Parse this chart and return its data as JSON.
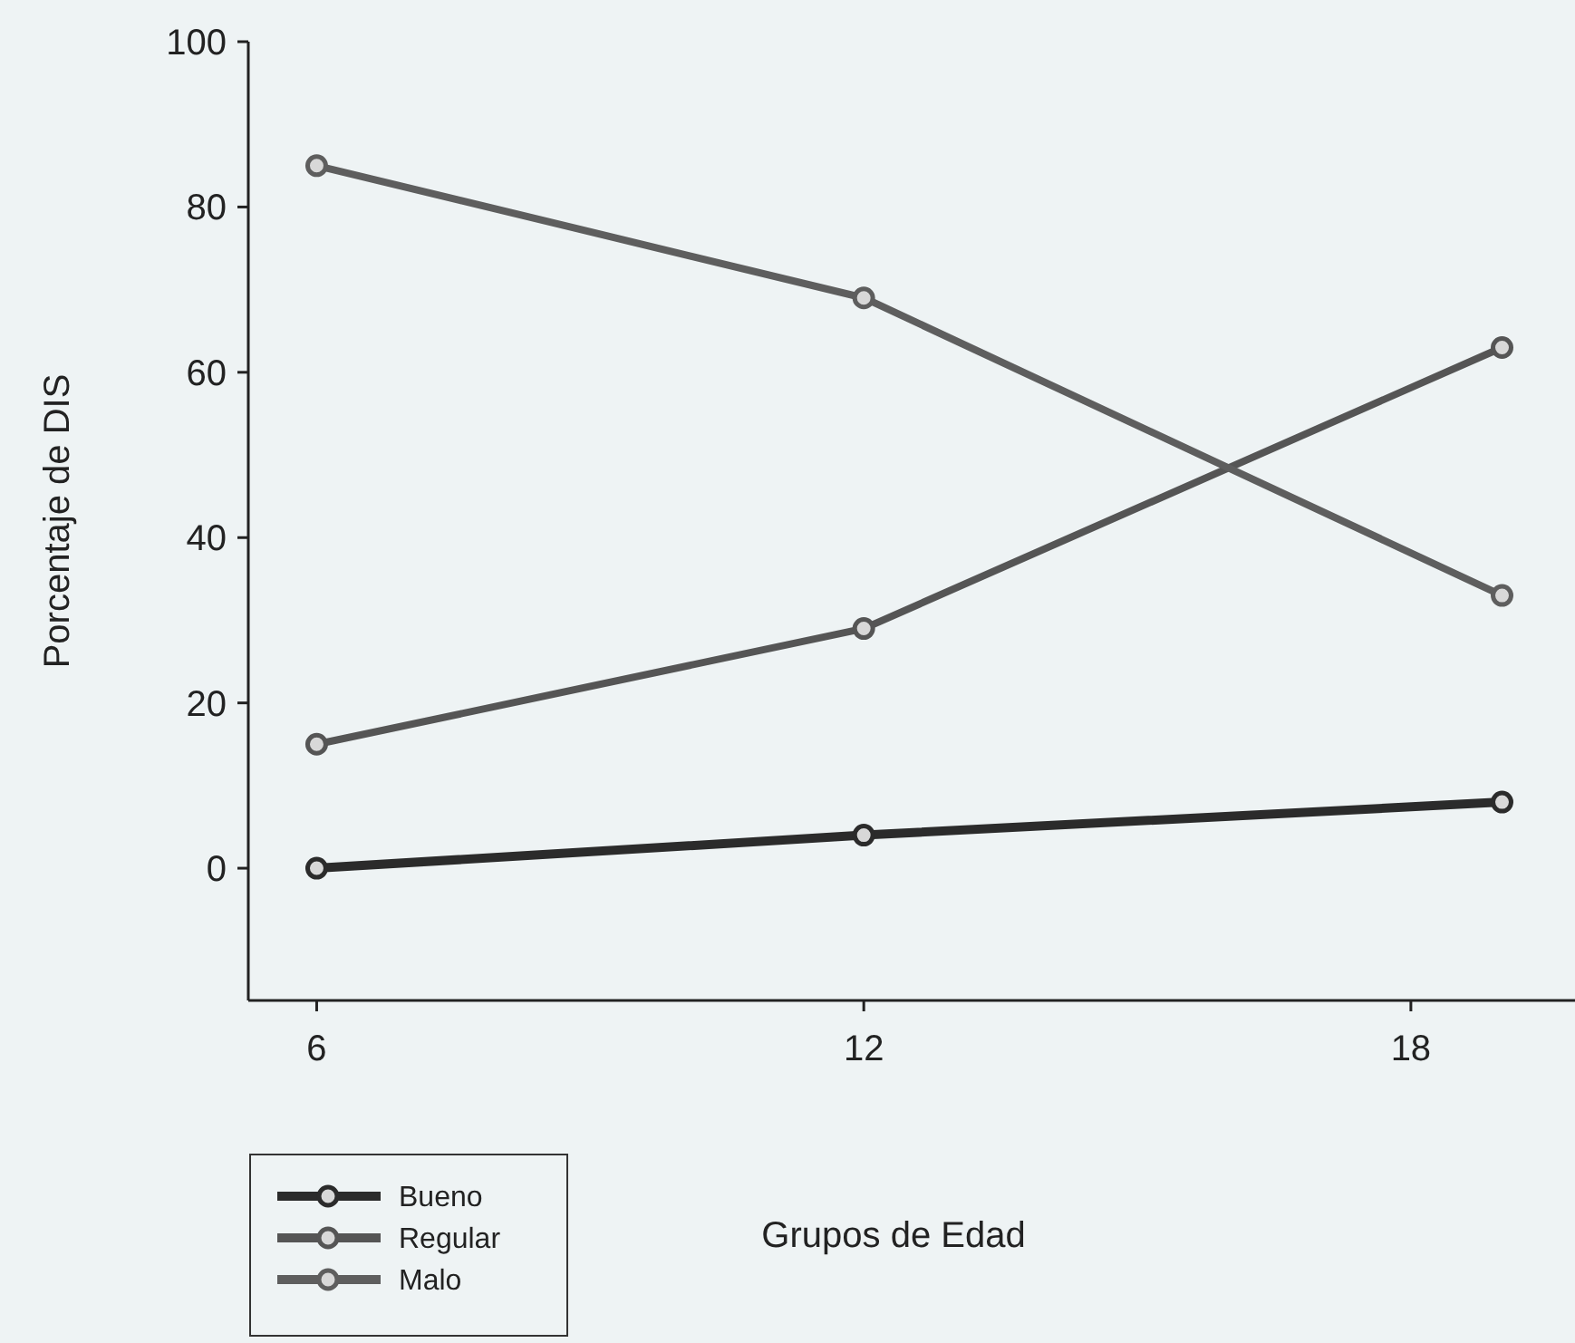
{
  "chart_data": {
    "type": "line",
    "xlabel": "Grupos de Edad",
    "ylabel": "Porcentaje de DIS",
    "xlim": [
      5.25,
      19.8
    ],
    "xticks": [
      6,
      12,
      18
    ],
    "ylim": [
      -16,
      100
    ],
    "yticks": [
      0,
      20,
      40,
      60,
      80,
      100
    ],
    "x": [
      6,
      12,
      19
    ],
    "marker": "circle",
    "line_style": "solid",
    "grid": false,
    "legend": "bottom left",
    "series": [
      {
        "name": "Bueno",
        "color": "#2b2b2b",
        "values": [
          0,
          4,
          8
        ]
      },
      {
        "name": "Regular",
        "color": "#555555",
        "values": [
          15,
          29,
          63
        ]
      },
      {
        "name": "Malo",
        "color": "#5e5e5e",
        "values": [
          85,
          69,
          33
        ]
      }
    ]
  }
}
